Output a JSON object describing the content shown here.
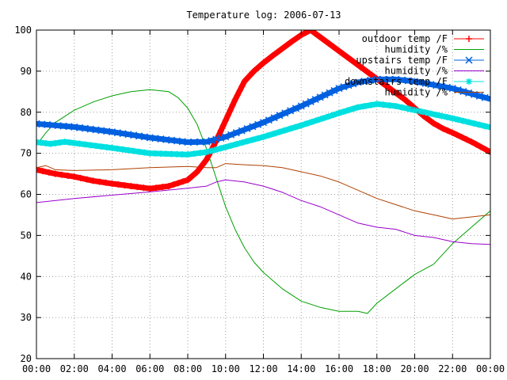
{
  "chart_data": {
    "type": "line",
    "title": "Temperature log: 2006-07-13",
    "xlabel": "",
    "ylabel": "",
    "xlim": [
      "00:00",
      "24:00"
    ],
    "ylim": [
      20,
      100
    ],
    "x_ticks": [
      "00:00",
      "02:00",
      "04:00",
      "06:00",
      "08:00",
      "10:00",
      "12:00",
      "14:00",
      "16:00",
      "18:00",
      "20:00",
      "22:00",
      "00:00"
    ],
    "y_ticks": [
      20,
      30,
      40,
      50,
      60,
      70,
      80,
      90,
      100
    ],
    "grid": true,
    "legend_position": "top-right",
    "series": [
      {
        "name": "outdoor temp /F",
        "color": "#ff0000",
        "marker": "plus",
        "x": [
          "00:00",
          "01:00",
          "02:00",
          "03:00",
          "04:00",
          "05:00",
          "06:00",
          "07:00",
          "08:00",
          "08:30",
          "09:00",
          "09:30",
          "10:00",
          "10:30",
          "11:00",
          "11:30",
          "12:00",
          "12:30",
          "13:00",
          "13:30",
          "14:00",
          "14:30",
          "19:30",
          "20:00",
          "20:30",
          "21:00",
          "21:30",
          "22:00",
          "23:00",
          "24:00"
        ],
        "values": [
          66.0,
          65.0,
          64.3,
          63.3,
          62.6,
          62.0,
          61.4,
          62.0,
          63.5,
          65.5,
          68.5,
          73.0,
          78.0,
          83.0,
          87.5,
          90.0,
          92.0,
          93.8,
          95.5,
          97.2,
          98.8,
          100.0,
          83.0,
          81.0,
          79.0,
          77.3,
          76.0,
          75.0,
          72.8,
          70.3
        ]
      },
      {
        "name": "humidity /%",
        "color": "#00a000",
        "x": [
          "00:00",
          "00:30",
          "01:00",
          "02:00",
          "03:00",
          "04:00",
          "05:00",
          "06:00",
          "07:00",
          "07:30",
          "08:00",
          "08:30",
          "09:00",
          "09:30",
          "10:00",
          "10:30",
          "11:00",
          "11:30",
          "12:00",
          "13:00",
          "14:00",
          "15:00",
          "16:00",
          "17:00",
          "17:30",
          "18:00",
          "19:00",
          "20:00",
          "21:00",
          "22:00",
          "23:00",
          "24:00"
        ],
        "values": [
          72.0,
          75.0,
          77.5,
          80.5,
          82.5,
          84.0,
          85.0,
          85.5,
          85.0,
          83.5,
          81.0,
          77.0,
          71.0,
          64.0,
          57.0,
          51.5,
          47.0,
          43.5,
          41.0,
          37.0,
          34.0,
          32.5,
          31.5,
          31.5,
          31.0,
          33.5,
          37.0,
          40.5,
          43.0,
          48.0,
          52.0,
          56.0
        ]
      },
      {
        "name": "upstairs temp /F",
        "color": "#0060e0",
        "marker": "cross",
        "x": [
          "00:00",
          "02:00",
          "04:00",
          "06:00",
          "08:00",
          "09:00",
          "10:00",
          "12:00",
          "14:00",
          "16:00",
          "17:00",
          "18:00",
          "19:00",
          "20:00",
          "22:00",
          "24:00"
        ],
        "values": [
          77.2,
          76.4,
          75.2,
          73.8,
          72.7,
          72.8,
          74.0,
          77.5,
          81.5,
          85.8,
          87.3,
          88.0,
          88.0,
          87.5,
          85.8,
          83.2
        ]
      },
      {
        "name": "humidity /%",
        "color": "#9900cc",
        "x": [
          "00:00",
          "02:00",
          "04:00",
          "06:00",
          "08:00",
          "09:00",
          "09:30",
          "10:00",
          "11:00",
          "12:00",
          "13:00",
          "14:00",
          "15:00",
          "16:00",
          "17:00",
          "18:00",
          "19:00",
          "20:00",
          "21:00",
          "22:00",
          "23:00",
          "24:00"
        ],
        "values": [
          58.0,
          59.0,
          59.8,
          60.6,
          61.5,
          62.0,
          63.0,
          63.5,
          63.0,
          62.0,
          60.5,
          58.5,
          57.0,
          55.0,
          53.0,
          52.0,
          51.5,
          50.0,
          49.5,
          48.5,
          48.0,
          47.8
        ]
      },
      {
        "name": "downstairs temp /F",
        "color": "#00e0e0",
        "marker": "star",
        "x": [
          "00:00",
          "00:45",
          "01:30",
          "02:00",
          "04:00",
          "06:00",
          "08:00",
          "09:00",
          "10:00",
          "12:00",
          "14:00",
          "16:00",
          "17:00",
          "18:00",
          "19:00",
          "20:00",
          "22:00",
          "24:00"
        ],
        "values": [
          72.7,
          72.3,
          72.8,
          72.5,
          71.3,
          70.0,
          69.7,
          70.3,
          71.5,
          74.0,
          76.8,
          79.8,
          81.2,
          82.0,
          81.5,
          80.5,
          78.5,
          76.3
        ]
      },
      {
        "name": "humidity /%",
        "color": "#b04000",
        "x": [
          "00:00",
          "00:30",
          "01:00",
          "02:00",
          "04:00",
          "06:00",
          "08:00",
          "09:00",
          "09:30",
          "10:00",
          "11:00",
          "12:00",
          "13:00",
          "14:00",
          "15:00",
          "16:00",
          "17:00",
          "18:00",
          "19:00",
          "20:00",
          "21:00",
          "22:00",
          "23:00",
          "24:00"
        ],
        "values": [
          66.5,
          67.0,
          66.0,
          65.8,
          66.0,
          66.5,
          66.8,
          66.5,
          66.5,
          67.5,
          67.2,
          67.0,
          66.5,
          65.5,
          64.5,
          63.0,
          61.0,
          59.0,
          57.5,
          56.0,
          55.0,
          54.0,
          54.5,
          55.0
        ]
      }
    ]
  }
}
